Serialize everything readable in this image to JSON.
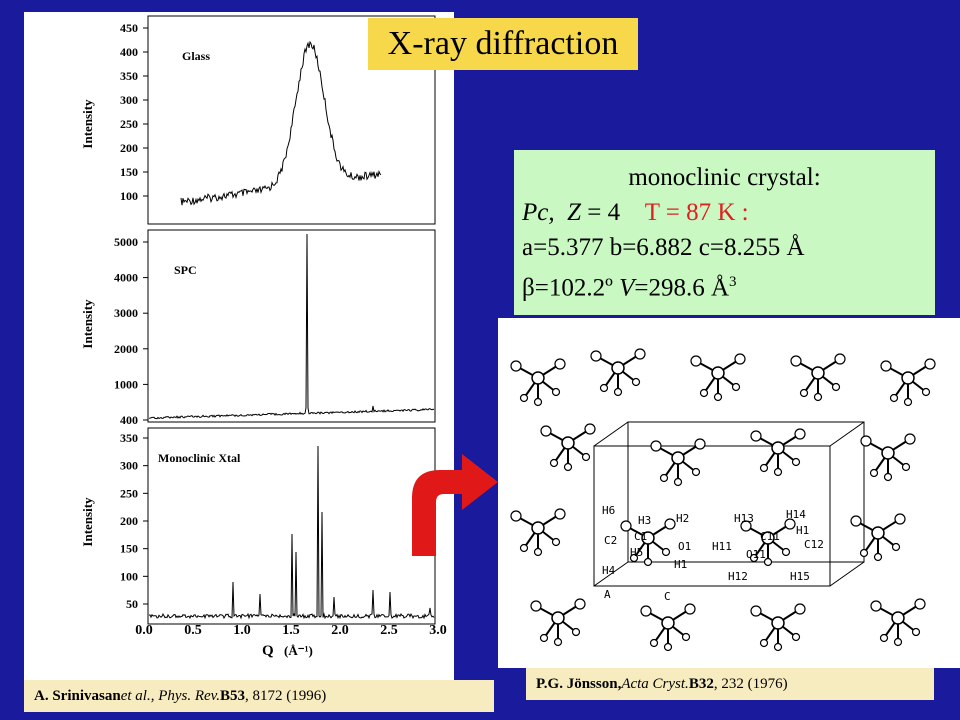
{
  "title": "X-ray diffraction",
  "info": {
    "heading": "monoclinic crystal:",
    "space_group": "Pc,",
    "z_label": "Z",
    "z_value": "= 4",
    "temperature": "T = 87 K :",
    "lattice": "a=5.377 b=6.882 c=8.255 Å",
    "beta_symbol": "β",
    "beta": "=102.2º",
    "volume_symbol": "V",
    "volume": "=298.6  Å",
    "volume_exp": "3"
  },
  "plots": {
    "ylabel": "Intensity",
    "xlabel": "Q",
    "xunit": "(Å⁻¹)",
    "xticks": [
      "0.0",
      "0.5",
      "1.0",
      "1.5",
      "2.0",
      "2.5",
      "3.0"
    ],
    "panels": [
      {
        "label": "Glass",
        "yticks": [
          "450",
          "400",
          "350",
          "300",
          "250",
          "200",
          "150",
          "100"
        ]
      },
      {
        "label": "SPC",
        "yticks": [
          "5000",
          "4000",
          "3000",
          "2000",
          "1000",
          "400"
        ]
      },
      {
        "label": "Monoclinic  Xtal",
        "yticks": [
          "350",
          "300",
          "250",
          "200",
          "150",
          "100",
          "50"
        ]
      }
    ]
  },
  "molecule": {
    "atom_labels": [
      "H6",
      "H3",
      "H2",
      "H13",
      "H14",
      "H1",
      "C2",
      "C1",
      "O1",
      "C11",
      "C12",
      "H5",
      "H11",
      "O11",
      "H4",
      "H1",
      "H12",
      "H15",
      "A",
      "C"
    ]
  },
  "citations": {
    "left": {
      "authors": "A. Srinivasan ",
      "etal": "et al., Phys. Rev.",
      "vol": " B53",
      "rest": ", 8172 (1996)"
    },
    "right": {
      "authors": "P.G. Jönsson, ",
      "journal": "Acta Cryst.",
      "vol": " B32",
      "rest": ", 232 (1976)"
    }
  },
  "colors": {
    "background": "#1a1a9c",
    "title_box": "#f7d84a",
    "info_box": "#c9f8c2",
    "caption_box": "#f7ebc0",
    "arrow": "#e01818",
    "temperature": "#e02020"
  }
}
